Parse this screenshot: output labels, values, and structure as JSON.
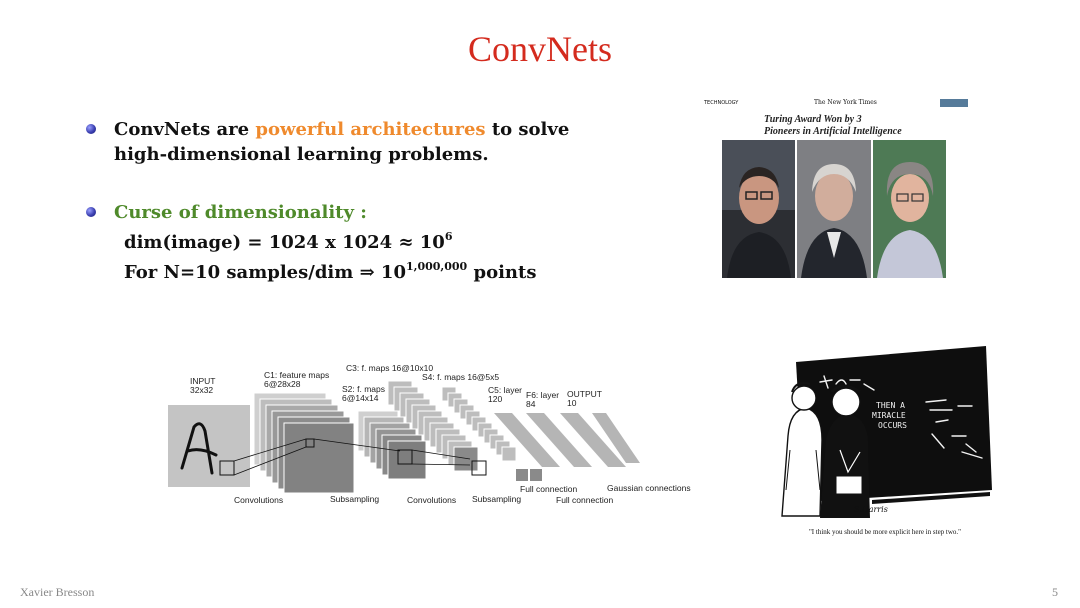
{
  "slide": {
    "title": "ConvNets",
    "bullets": [
      {
        "part1": "ConvNets are ",
        "highlight": "powerful architectures",
        "part2": " to solve high-dimensional learning problems."
      },
      {
        "heading": "Curse of dimensionality :",
        "line1_main": "dim(image) = 1024 x 1024 ≈ 10",
        "line1_sup": "6",
        "line2_a": "For N=10 samples/dim ⇒ 10",
        "line2_sup": "1,000,000",
        "line2_b": " points"
      }
    ],
    "colors": {
      "title": "#d42b1e",
      "highlight": "#ef8a2d",
      "heading_green": "#4f8a2b"
    },
    "nyt": {
      "section": "TECHNOLOGY",
      "masthead": "The New York Times",
      "headline_l1": "Turing Award Won by 3",
      "headline_l2": "Pioneers in Artificial Intelligence"
    },
    "cartoon": {
      "board_l1": "THEN A",
      "board_l2": "MIRACLE",
      "board_l3": "OCCURS",
      "signature": "S.Harris",
      "caption": "\"I think you should be more explicit here in step two.\""
    },
    "lenet": {
      "input": "INPUT\n32x32",
      "c1": "C1: feature maps\n6@28x28",
      "s2": "S2: f. maps\n6@14x14",
      "c3": "C3: f. maps 16@10x10",
      "s4": "S4: f. maps 16@5x5",
      "c5": "C5: layer\n120",
      "f6": "F6: layer\n84",
      "output": "OUTPUT\n10",
      "convolutions1": "Convolutions",
      "subsampling1": "Subsampling",
      "convolutions2": "Convolutions",
      "subsampling2": "Subsampling",
      "full_connection1": "Full connection",
      "full_connection2": "Full connection",
      "gaussian": "Gaussian connections"
    },
    "footer": {
      "author": "Xavier Bresson",
      "page": "5"
    }
  }
}
